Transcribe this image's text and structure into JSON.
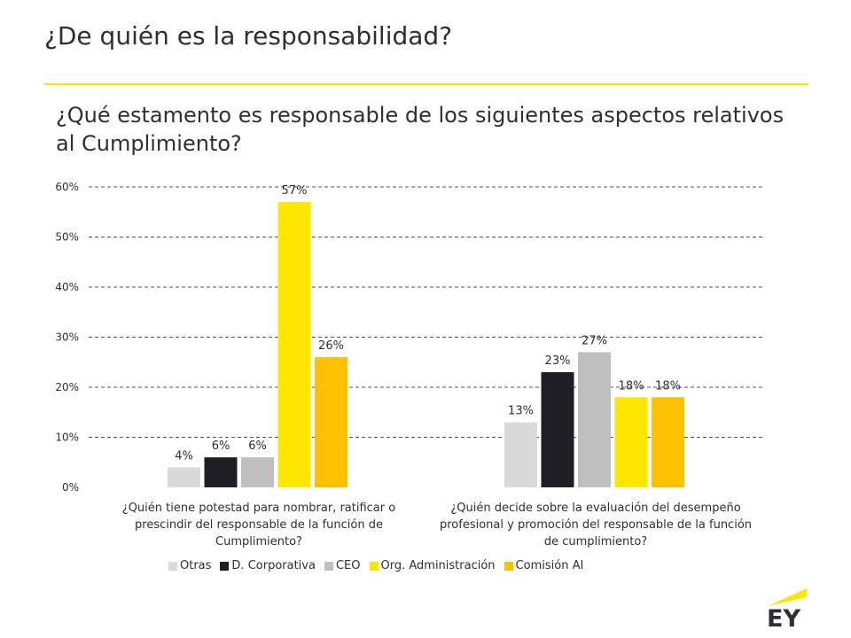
{
  "title": "¿De quién es la responsabilidad?",
  "subtitle": "¿Qué estamento es responsable de los siguientes aspectos relativos al Cumplimiento?",
  "colors": {
    "accent": "#ffe600",
    "text": "#2e2e38"
  },
  "logo": {
    "text": "EY"
  },
  "chart_data": {
    "type": "bar",
    "categories": [
      "¿Quién tiene potestad para nombrar, ratificar o prescindir del responsable de la función de Cumplimiento?",
      "¿Quién decide sobre la evaluación del desempeño profesional y promoción del responsable de la función de cumplimiento?"
    ],
    "series": [
      {
        "name": "Otras",
        "color": "#d9d9d9",
        "values": [
          4,
          13
        ]
      },
      {
        "name": "D. Corporativa",
        "color": "#1e1e24",
        "values": [
          6,
          23
        ]
      },
      {
        "name": "CEO",
        "color": "#bfbfbf",
        "values": [
          6,
          27
        ]
      },
      {
        "name": "Org. Administración",
        "color": "#ffe600",
        "values": [
          57,
          18
        ]
      },
      {
        "name": "Comisión AI",
        "color": "#ffc000",
        "values": [
          26,
          18
        ]
      }
    ],
    "ylim": [
      0,
      60
    ],
    "yticks": [
      0,
      10,
      20,
      30,
      40,
      50,
      60
    ],
    "value_suffix": "%",
    "grid": true,
    "legend_position": "bottom"
  }
}
